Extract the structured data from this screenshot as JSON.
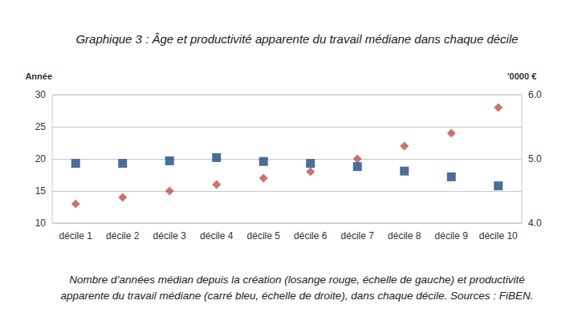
{
  "chart_data": {
    "type": "scatter",
    "title": "Graphique 3 : Âge et productivité apparente du travail médiane dans chaque décile",
    "y_label": "Année",
    "y2_label": "'0000 €",
    "caption": [
      "Nombre d’années médian depuis la création (losange rouge, échelle de gauche) et productivité",
      "apparente du travail médiane (carré bleu, échelle de droite), dans chaque décile. Sources : FiBEN."
    ],
    "categories": [
      "décile 1",
      "décile 2",
      "décile 3",
      "décile 4",
      "décile 5",
      "décile 6",
      "décile 7",
      "décile 8",
      "décile 9",
      "décile 10"
    ],
    "series": [
      {
        "color": "#c0504d",
        "marker": "diamond",
        "values": [
          13,
          14,
          15,
          16,
          17,
          18,
          20,
          22,
          24,
          28
        ]
      },
      {
        "color": "#1f497d",
        "marker": "square",
        "axis": "y2",
        "values": [
          4.93,
          4.93,
          4.97,
          5.02,
          4.96,
          4.93,
          4.88,
          4.81,
          4.72,
          4.58
        ]
      }
    ],
    "ylim": [
      10,
      30
    ],
    "yticks": [
      10,
      15,
      20,
      25,
      30
    ],
    "y2lim": [
      4,
      6
    ],
    "y2ticks": [
      {
        "value": 4,
        "label": "4.0"
      },
      {
        "value": 5,
        "label": "5.0"
      },
      {
        "value": 6,
        "label": "6.0"
      }
    ],
    "grid": true
  }
}
